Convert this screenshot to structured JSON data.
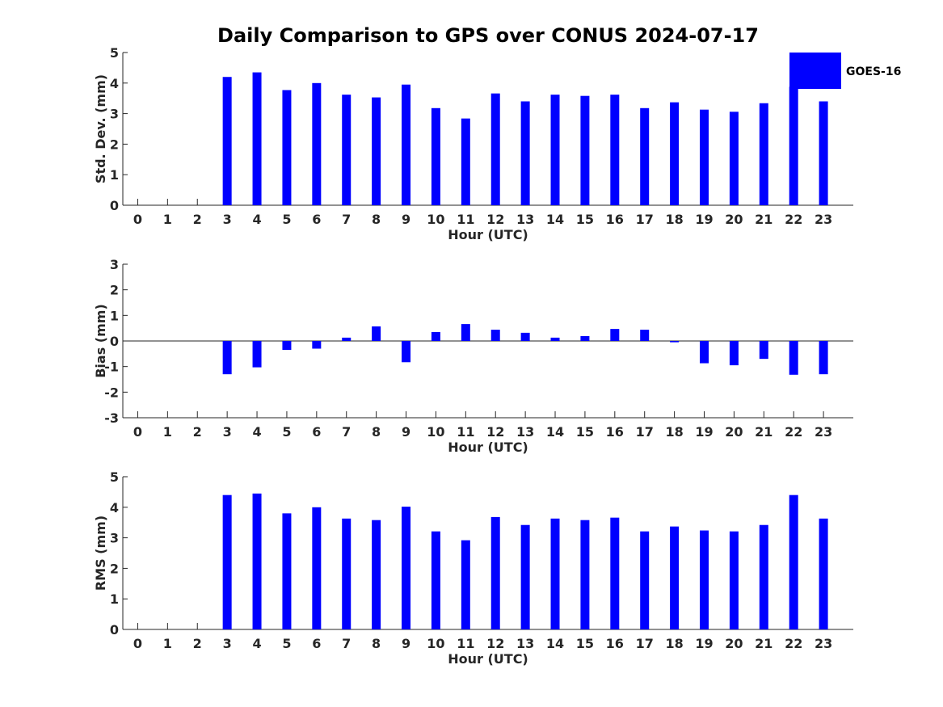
{
  "figure_title": "Daily Comparison to GPS over CONUS 2024-07-17",
  "legend_label": "GOES-16",
  "series_color": "#0000ff",
  "chart_data": [
    {
      "type": "bar",
      "name": "std-dev",
      "categories": [
        "0",
        "1",
        "2",
        "3",
        "4",
        "5",
        "6",
        "7",
        "8",
        "9",
        "10",
        "11",
        "12",
        "13",
        "14",
        "15",
        "16",
        "17",
        "18",
        "19",
        "20",
        "21",
        "22",
        "23"
      ],
      "values": [
        null,
        null,
        null,
        4.2,
        4.35,
        3.77,
        4.0,
        3.62,
        3.53,
        3.95,
        3.18,
        2.84,
        3.66,
        3.4,
        3.62,
        3.58,
        3.62,
        3.18,
        3.37,
        3.13,
        3.06,
        3.34,
        3.88,
        3.4
      ],
      "xlabel": "Hour (UTC)",
      "ylabel": "Std. Dev. (mm)",
      "ylim": [
        0,
        5
      ],
      "yticks": [
        "0",
        "1",
        "2",
        "3",
        "4",
        "5"
      ]
    },
    {
      "type": "bar",
      "name": "bias",
      "categories": [
        "0",
        "1",
        "2",
        "3",
        "4",
        "5",
        "6",
        "7",
        "8",
        "9",
        "10",
        "11",
        "12",
        "13",
        "14",
        "15",
        "16",
        "17",
        "18",
        "19",
        "20",
        "21",
        "22",
        "23"
      ],
      "values": [
        null,
        null,
        null,
        -1.3,
        -1.03,
        -0.35,
        -0.3,
        0.13,
        0.57,
        -0.83,
        0.35,
        0.66,
        0.44,
        0.32,
        0.13,
        0.19,
        0.47,
        0.44,
        -0.05,
        -0.87,
        -0.95,
        -0.7,
        -1.32,
        -1.3
      ],
      "xlabel": "Hour (UTC)",
      "ylabel": "Bias (mm)",
      "ylim": [
        -3,
        3
      ],
      "yticks": [
        "-3",
        "-2",
        "-1",
        "0",
        "1",
        "2",
        "3"
      ]
    },
    {
      "type": "bar",
      "name": "rms",
      "categories": [
        "0",
        "1",
        "2",
        "3",
        "4",
        "5",
        "6",
        "7",
        "8",
        "9",
        "10",
        "11",
        "12",
        "13",
        "14",
        "15",
        "16",
        "17",
        "18",
        "19",
        "20",
        "21",
        "22",
        "23"
      ],
      "values": [
        null,
        null,
        null,
        4.4,
        4.45,
        3.8,
        4.0,
        3.63,
        3.58,
        4.02,
        3.21,
        2.92,
        3.68,
        3.42,
        3.63,
        3.58,
        3.66,
        3.21,
        3.37,
        3.24,
        3.21,
        3.42,
        4.4,
        3.63
      ],
      "xlabel": "Hour (UTC)",
      "ylabel": "RMS (mm)",
      "ylim": [
        0,
        5
      ],
      "yticks": [
        "0",
        "1",
        "2",
        "3",
        "4",
        "5"
      ]
    }
  ]
}
